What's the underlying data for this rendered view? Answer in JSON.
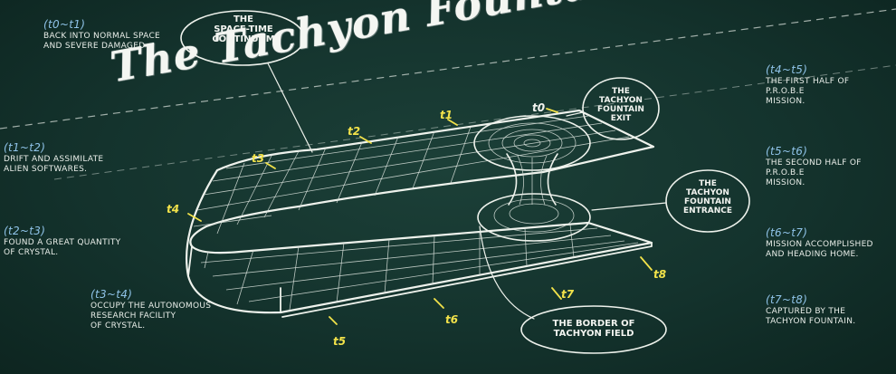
{
  "title": "The Tachyon Fountain Theory",
  "callouts": {
    "space_time": "THE\nSPACE-TIME\nCONTINUUM",
    "exit": "THE\nTACHYON\nFOUNTAIN\nEXIT",
    "entrance": "THE\nTACHYON\nFOUNTAIN\nENTRANCE",
    "border": "THE BORDER OF\nTACHYON FIELD"
  },
  "notes_left": [
    {
      "range": "(t0~t1)",
      "text": "BACK INTO NORMAL SPACE\nAND SEVERE DAMAGED"
    },
    {
      "range": "(t1~t2)",
      "text": "DRIFT AND ASSIMILATE\nALIEN SOFTWARES."
    },
    {
      "range": "(t2~t3)",
      "text": "FOUND A GREAT QUANTITY\nOF CRYSTAL."
    },
    {
      "range": "(t3~t4)",
      "text": "OCCUPY THE AUTONOMOUS\nRESEARCH FACILITY\nOF CRYSTAL."
    }
  ],
  "notes_right": [
    {
      "range": "(t4~t5)",
      "text": "THE FIRST HALF OF\nP.R.O.B.E\nMISSION."
    },
    {
      "range": "(t5~t6)",
      "text": "THE SECOND HALF OF\nP.R.O.B.E\nMISSION."
    },
    {
      "range": "(t6~t7)",
      "text": "MISSION ACCOMPLISHED\nAND HEADING HOME."
    },
    {
      "range": "(t7~t8)",
      "text": "CAPTURED BY THE\nTACHYON FOUNTAIN."
    }
  ],
  "time_labels": {
    "t0": "t0",
    "t1": "t1",
    "t2": "t2",
    "t3": "t3",
    "t4": "t4",
    "t5": "t5",
    "t6": "t6",
    "t7": "t7",
    "t8": "t8"
  },
  "colors": {
    "board": "#14332d",
    "chalk": "#eef2ec",
    "time_marker": "#f2e24a",
    "range_text": "#8fc3e8"
  }
}
